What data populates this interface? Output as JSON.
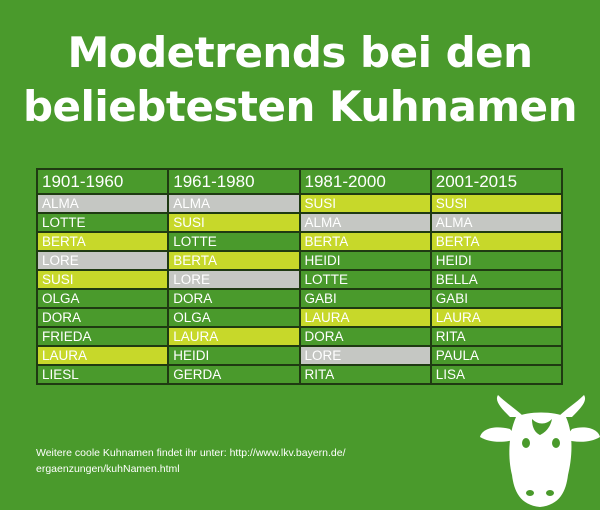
{
  "title": {
    "line1": "Modetrends bei den",
    "line2": "beliebtesten Kuhnamen"
  },
  "table": {
    "columns": [
      "1901-1960",
      "1961-1980",
      "1981-2000",
      "2001-2015"
    ],
    "rows": [
      [
        {
          "name": "ALMA",
          "hl": "gray"
        },
        {
          "name": "ALMA",
          "hl": "gray"
        },
        {
          "name": "SUSI",
          "hl": "yellow"
        },
        {
          "name": "SUSI",
          "hl": "yellow"
        }
      ],
      [
        {
          "name": "LOTTE",
          "hl": ""
        },
        {
          "name": "SUSI",
          "hl": "yellow"
        },
        {
          "name": "ALMA",
          "hl": "gray"
        },
        {
          "name": "ALMA",
          "hl": "gray"
        }
      ],
      [
        {
          "name": "BERTA",
          "hl": "yellow"
        },
        {
          "name": "LOTTE",
          "hl": ""
        },
        {
          "name": "BERTA",
          "hl": "yellow"
        },
        {
          "name": "BERTA",
          "hl": "yellow"
        }
      ],
      [
        {
          "name": "LORE",
          "hl": "gray"
        },
        {
          "name": "BERTA",
          "hl": "yellow"
        },
        {
          "name": "HEIDI",
          "hl": ""
        },
        {
          "name": "HEIDI",
          "hl": ""
        }
      ],
      [
        {
          "name": "SUSI",
          "hl": "yellow"
        },
        {
          "name": "LORE",
          "hl": "gray"
        },
        {
          "name": "LOTTE",
          "hl": ""
        },
        {
          "name": "BELLA",
          "hl": ""
        }
      ],
      [
        {
          "name": "OLGA",
          "hl": ""
        },
        {
          "name": "DORA",
          "hl": ""
        },
        {
          "name": "GABI",
          "hl": ""
        },
        {
          "name": "GABI",
          "hl": ""
        }
      ],
      [
        {
          "name": "DORA",
          "hl": ""
        },
        {
          "name": "OLGA",
          "hl": ""
        },
        {
          "name": "LAURA",
          "hl": "yellow"
        },
        {
          "name": "LAURA",
          "hl": "yellow"
        }
      ],
      [
        {
          "name": "FRIEDA",
          "hl": ""
        },
        {
          "name": "LAURA",
          "hl": "yellow"
        },
        {
          "name": "DORA",
          "hl": ""
        },
        {
          "name": "RITA",
          "hl": ""
        }
      ],
      [
        {
          "name": "LAURA",
          "hl": "yellow"
        },
        {
          "name": "HEIDI",
          "hl": ""
        },
        {
          "name": "LORE",
          "hl": "gray"
        },
        {
          "name": "PAULA",
          "hl": ""
        }
      ],
      [
        {
          "name": "LIESL",
          "hl": ""
        },
        {
          "name": "GERDA",
          "hl": ""
        },
        {
          "name": "RITA",
          "hl": ""
        },
        {
          "name": "LISA",
          "hl": ""
        }
      ]
    ]
  },
  "footer": {
    "line1": "Weitere coole Kuhnamen findet ihr unter: http://www.lkv.bayern.de/",
    "line2": "ergaenzungen/kuhNamen.html"
  },
  "colors": {
    "background": "#4a9a2c",
    "highlight_gray": "#c5c7c3",
    "highlight_yellow": "#c7d82a",
    "grid": "#1f3a12"
  },
  "icons": {
    "corner": "cow-head-icon"
  }
}
